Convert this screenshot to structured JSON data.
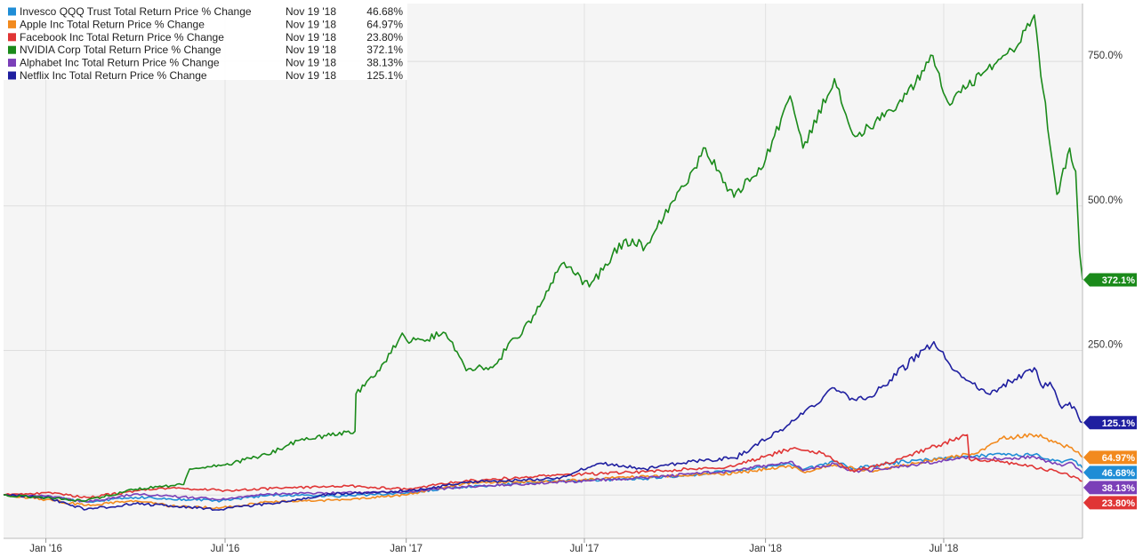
{
  "chart_data": {
    "type": "line",
    "y_unit": "% change",
    "ylim": [
      -75,
      850
    ],
    "y_ticks": [
      {
        "value": 250,
        "label": "250.0%"
      },
      {
        "value": 500,
        "label": "500.0%"
      },
      {
        "value": 750,
        "label": "750.0%"
      }
    ],
    "x_ticks": [
      {
        "date": "2016-01-01",
        "label": "Jan '16"
      },
      {
        "date": "2016-07-01",
        "label": "Jul '16"
      },
      {
        "date": "2017-01-01",
        "label": "Jan '17"
      },
      {
        "date": "2017-07-01",
        "label": "Jul '17"
      },
      {
        "date": "2018-01-01",
        "label": "Jan '18"
      },
      {
        "date": "2018-07-01",
        "label": "Jul '18"
      }
    ],
    "x_range": [
      "2015-11-19",
      "2018-11-19"
    ],
    "grid": true,
    "legend_placement": "top-left",
    "series": [
      {
        "name": "Invesco QQQ Trust Total Return Price % Change",
        "legend_date": "Nov 19 '18",
        "legend_value": "46.68%",
        "end_label": "46.68%",
        "color": "#1f8dd6",
        "points": [
          [
            "2015-11-19",
            0
          ],
          [
            "2016-01-01",
            -2
          ],
          [
            "2016-02-11",
            -12
          ],
          [
            "2016-04-01",
            -4
          ],
          [
            "2016-06-27",
            -10
          ],
          [
            "2016-08-15",
            0
          ],
          [
            "2016-11-01",
            -2
          ],
          [
            "2017-01-01",
            4
          ],
          [
            "2017-03-01",
            14
          ],
          [
            "2017-06-01",
            24
          ],
          [
            "2017-09-01",
            28
          ],
          [
            "2017-12-01",
            42
          ],
          [
            "2018-01-26",
            54
          ],
          [
            "2018-02-08",
            44
          ],
          [
            "2018-03-12",
            58
          ],
          [
            "2018-04-01",
            46
          ],
          [
            "2018-06-01",
            60
          ],
          [
            "2018-08-29",
            70
          ],
          [
            "2018-09-15",
            68
          ],
          [
            "2018-10-01",
            70
          ],
          [
            "2018-10-29",
            56
          ],
          [
            "2018-11-08",
            62
          ],
          [
            "2018-11-19",
            46.68
          ]
        ]
      },
      {
        "name": "Apple Inc Total Return Price % Change",
        "legend_date": "Nov 19 '18",
        "legend_value": "64.97%",
        "end_label": "64.97%",
        "color": "#f28a1e",
        "points": [
          [
            "2015-11-19",
            0
          ],
          [
            "2016-01-01",
            -8
          ],
          [
            "2016-02-11",
            -18
          ],
          [
            "2016-04-01",
            -10
          ],
          [
            "2016-05-12",
            -20
          ],
          [
            "2016-06-27",
            -22
          ],
          [
            "2016-08-15",
            -12
          ],
          [
            "2016-11-01",
            -8
          ],
          [
            "2017-01-01",
            0
          ],
          [
            "2017-03-01",
            20
          ],
          [
            "2017-06-01",
            24
          ],
          [
            "2017-09-01",
            32
          ],
          [
            "2017-12-01",
            38
          ],
          [
            "2018-01-26",
            50
          ],
          [
            "2018-02-08",
            40
          ],
          [
            "2018-03-12",
            52
          ],
          [
            "2018-04-20",
            40
          ],
          [
            "2018-06-01",
            55
          ],
          [
            "2018-08-03",
            72
          ],
          [
            "2018-08-29",
            98
          ],
          [
            "2018-10-03",
            104
          ],
          [
            "2018-10-29",
            86
          ],
          [
            "2018-11-08",
            82
          ],
          [
            "2018-11-19",
            64.97
          ]
        ]
      },
      {
        "name": "Facebook Inc Total Return Price % Change",
        "legend_date": "Nov 19 '18",
        "legend_value": "23.80%",
        "end_label": "23.80%",
        "color": "#e03535",
        "points": [
          [
            "2015-11-19",
            0
          ],
          [
            "2016-01-01",
            4
          ],
          [
            "2016-02-11",
            -4
          ],
          [
            "2016-04-29",
            12
          ],
          [
            "2016-07-01",
            8
          ],
          [
            "2016-11-01",
            16
          ],
          [
            "2017-01-01",
            10
          ],
          [
            "2017-03-01",
            24
          ],
          [
            "2017-06-01",
            34
          ],
          [
            "2017-09-01",
            40
          ],
          [
            "2017-12-01",
            50
          ],
          [
            "2018-01-26",
            80
          ],
          [
            "2018-03-01",
            72
          ],
          [
            "2018-03-28",
            42
          ],
          [
            "2018-05-01",
            52
          ],
          [
            "2018-07-25",
            104
          ],
          [
            "2018-07-27",
            62
          ],
          [
            "2018-09-01",
            56
          ],
          [
            "2018-10-01",
            48
          ],
          [
            "2018-11-01",
            38
          ],
          [
            "2018-11-19",
            23.8
          ]
        ]
      },
      {
        "name": "NVIDIA Corp Total Return Price % Change",
        "legend_date": "Nov 19 '18",
        "legend_value": "372.1%",
        "end_label": "372.1%",
        "color": "#1a8a1a",
        "points": [
          [
            "2015-11-19",
            0
          ],
          [
            "2016-01-01",
            -5
          ],
          [
            "2016-02-11",
            -10
          ],
          [
            "2016-04-01",
            10
          ],
          [
            "2016-05-20",
            18
          ],
          [
            "2016-05-26",
            45
          ],
          [
            "2016-07-01",
            52
          ],
          [
            "2016-08-12",
            70
          ],
          [
            "2016-09-15",
            95
          ],
          [
            "2016-11-10",
            110
          ],
          [
            "2016-11-11",
            175
          ],
          [
            "2016-12-05",
            215
          ],
          [
            "2016-12-28",
            280
          ],
          [
            "2017-01-06",
            265
          ],
          [
            "2017-02-10",
            280
          ],
          [
            "2017-03-03",
            215
          ],
          [
            "2017-04-01",
            225
          ],
          [
            "2017-05-10",
            310
          ],
          [
            "2017-06-08",
            400
          ],
          [
            "2017-07-06",
            360
          ],
          [
            "2017-08-10",
            440
          ],
          [
            "2017-09-01",
            430
          ],
          [
            "2017-10-01",
            510
          ],
          [
            "2017-11-01",
            600
          ],
          [
            "2017-11-30",
            515
          ],
          [
            "2018-01-01",
            580
          ],
          [
            "2018-01-26",
            690
          ],
          [
            "2018-02-08",
            600
          ],
          [
            "2018-03-12",
            720
          ],
          [
            "2018-04-02",
            620
          ],
          [
            "2018-05-20",
            680
          ],
          [
            "2018-06-20",
            760
          ],
          [
            "2018-07-05",
            680
          ],
          [
            "2018-08-10",
            730
          ],
          [
            "2018-09-15",
            780
          ],
          [
            "2018-10-01",
            830
          ],
          [
            "2018-10-10",
            700
          ],
          [
            "2018-10-24",
            520
          ],
          [
            "2018-11-06",
            600
          ],
          [
            "2018-11-12",
            560
          ],
          [
            "2018-11-16",
            420
          ],
          [
            "2018-11-19",
            372.1
          ]
        ]
      },
      {
        "name": "Alphabet Inc Total Return Price % Change",
        "legend_date": "Nov 19 '18",
        "legend_value": "38.13%",
        "end_label": "38.13%",
        "color": "#7b3fb8",
        "points": [
          [
            "2015-11-19",
            0
          ],
          [
            "2016-01-01",
            -2
          ],
          [
            "2016-02-11",
            -12
          ],
          [
            "2016-04-01",
            2
          ],
          [
            "2016-06-27",
            -8
          ],
          [
            "2016-08-15",
            2
          ],
          [
            "2016-11-01",
            4
          ],
          [
            "2017-01-01",
            6
          ],
          [
            "2017-03-01",
            14
          ],
          [
            "2017-06-01",
            22
          ],
          [
            "2017-09-01",
            30
          ],
          [
            "2017-12-01",
            42
          ],
          [
            "2018-01-26",
            58
          ],
          [
            "2018-02-08",
            42
          ],
          [
            "2018-03-12",
            54
          ],
          [
            "2018-04-01",
            40
          ],
          [
            "2018-06-01",
            52
          ],
          [
            "2018-07-26",
            66
          ],
          [
            "2018-08-15",
            62
          ],
          [
            "2018-10-01",
            66
          ],
          [
            "2018-10-29",
            50
          ],
          [
            "2018-11-08",
            56
          ],
          [
            "2018-11-19",
            38.13
          ]
        ]
      },
      {
        "name": "Netflix Inc Total Return Price % Change",
        "legend_date": "Nov 19 '18",
        "legend_value": "125.1%",
        "end_label": "125.1%",
        "color": "#1f1fa0",
        "points": [
          [
            "2015-11-19",
            0
          ],
          [
            "2016-01-01",
            -4
          ],
          [
            "2016-02-11",
            -25
          ],
          [
            "2016-04-01",
            -15
          ],
          [
            "2016-06-27",
            -25
          ],
          [
            "2016-07-18",
            -20
          ],
          [
            "2016-09-01",
            -12
          ],
          [
            "2016-10-18",
            2
          ],
          [
            "2016-12-01",
            4
          ],
          [
            "2017-01-18",
            10
          ],
          [
            "2017-03-01",
            22
          ],
          [
            "2017-06-01",
            28
          ],
          [
            "2017-07-18",
            55
          ],
          [
            "2017-09-01",
            45
          ],
          [
            "2017-10-17",
            58
          ],
          [
            "2017-12-01",
            64
          ],
          [
            "2018-01-23",
            120
          ],
          [
            "2018-03-12",
            185
          ],
          [
            "2018-04-01",
            165
          ],
          [
            "2018-04-17",
            170
          ],
          [
            "2018-06-21",
            265
          ],
          [
            "2018-07-12",
            215
          ],
          [
            "2018-07-17",
            210
          ],
          [
            "2018-08-15",
            175
          ],
          [
            "2018-09-20",
            210
          ],
          [
            "2018-10-01",
            220
          ],
          [
            "2018-10-10",
            185
          ],
          [
            "2018-10-17",
            195
          ],
          [
            "2018-10-29",
            150
          ],
          [
            "2018-11-06",
            160
          ],
          [
            "2018-11-19",
            125.1
          ]
        ]
      }
    ]
  }
}
